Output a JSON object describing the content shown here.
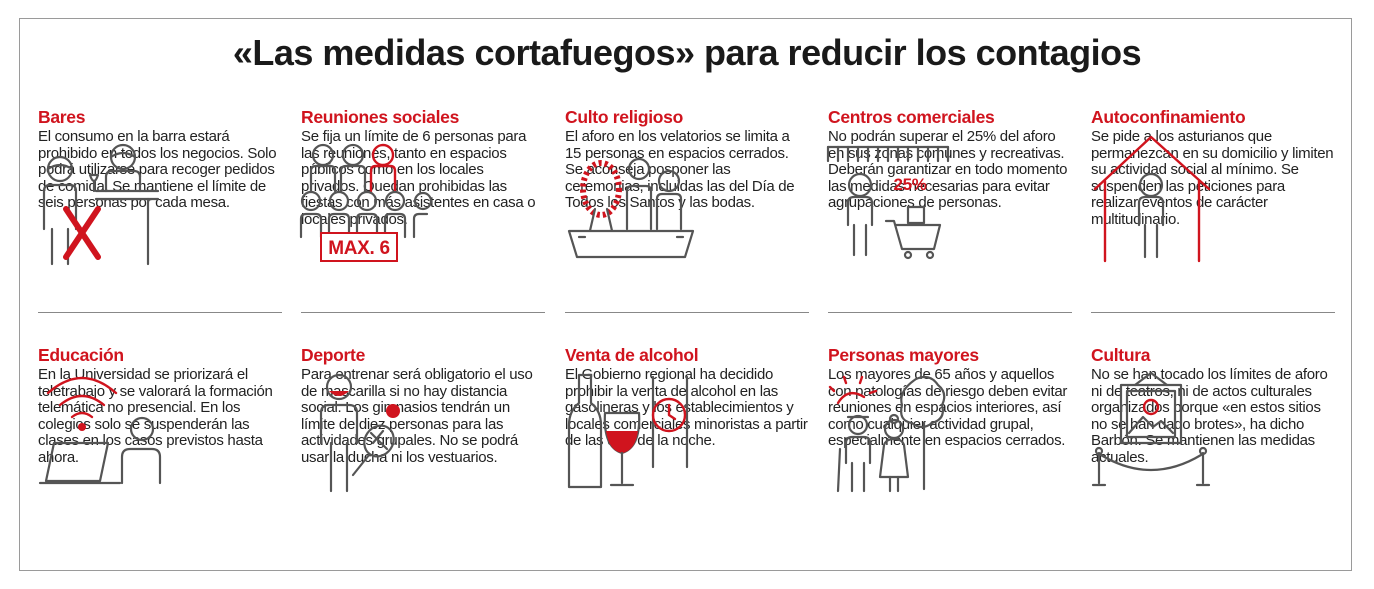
{
  "title": "«Las medidas cortafuegos» para reducir los contagios",
  "colors": {
    "accent": "#d0141e",
    "text": "#222222",
    "line": "#555555"
  },
  "sections": [
    {
      "heading": "Bares",
      "icon": "bar-counter-icon",
      "text_wrap": "El consumo en la barra estará prohibido en todos los negocios. Solo podrá utilizarse para recoger pedidos de",
      "text_full": "comida. Se mantiene el límite de seis personas por cada mesa."
    },
    {
      "heading": "Reuniones sociales",
      "icon": "group-limit-icon",
      "badge": "MAX. 6",
      "text_wrap": "Se fija un límite de 6 personas para las reuniones, tanto en espacios públicos como en los locales privados. Quedan",
      "text_full": "prohibidas las fiestas con más asistentes en casa o locales privados."
    },
    {
      "heading": "Culto religioso",
      "icon": "funeral-icon",
      "text_wrap": "El aforo en los velatorios se limita a 15 personas en espacios cerrados. Se aconseja posponer las",
      "text_full": "ceremonias, incluidas las del Día de Todos los Santos y las bodas."
    },
    {
      "heading": "Centros comerciales",
      "icon": "shopping-cart-icon",
      "badge": "25%",
      "text_wrap": "No podrán superar el 25% del aforo en sus zonas comunes y recreativas. Deberán garantizar en todo momento",
      "text_full": "las medidas necesarias para evitar agrupaciones de personas."
    },
    {
      "heading": "Autoconfinamiento",
      "icon": "house-person-icon",
      "text_wrap": "Se pide a los asturianos que permanezcan en su domicilio y limiten su actividad social al mínimo. Se",
      "text_full": "suspenden las peticiones para realizar eventos de carácter multitudinario."
    },
    {
      "heading": "Educación",
      "icon": "remote-learning-icon",
      "text_wrap": "En la Universidad se priorizará el teletrabajo y se valorará la formación telemática no presencial. En los",
      "text_full": "colegios solo se suspenderán las clases en los casos previstos hasta ahora."
    },
    {
      "heading": "Deporte",
      "icon": "tennis-player-icon",
      "text_wrap": "Para entrenar será obligatorio el uso de mascarilla si no hay distancia social. Los gimnasios tendrán un límite de diez personas",
      "text_full": "para las actividades grupales. No se podrá usar la ducha ni los vestuarios."
    },
    {
      "heading": "Venta de alcohol",
      "icon": "wine-clock-icon",
      "text_wrap": "El Gobierno regional ha decidido prohibir la venta de alcohol en las gasolineras y los establecimientos y locales comerciales minoristas a",
      "text_full": "partir de las diez de la noche."
    },
    {
      "heading": "Personas mayores",
      "icon": "elderly-couple-icon",
      "text_wrap": "Los mayores de 65 años y aquellos con patologías de riesgo deben evitar reuniones en espacios interiores, así",
      "text_full": "como cualquier actividad grupal, especialmente en espacios cerrados."
    },
    {
      "heading": "Cultura",
      "icon": "museum-frame-icon",
      "text_wrap": "No se han tocado los límites de aforo ni de teatros, ni de actos culturales organizados porque «en estos sitios no se han",
      "text_full": "dado brotes», ha dicho Barbón. Se mantienen las medidas actuales."
    }
  ]
}
